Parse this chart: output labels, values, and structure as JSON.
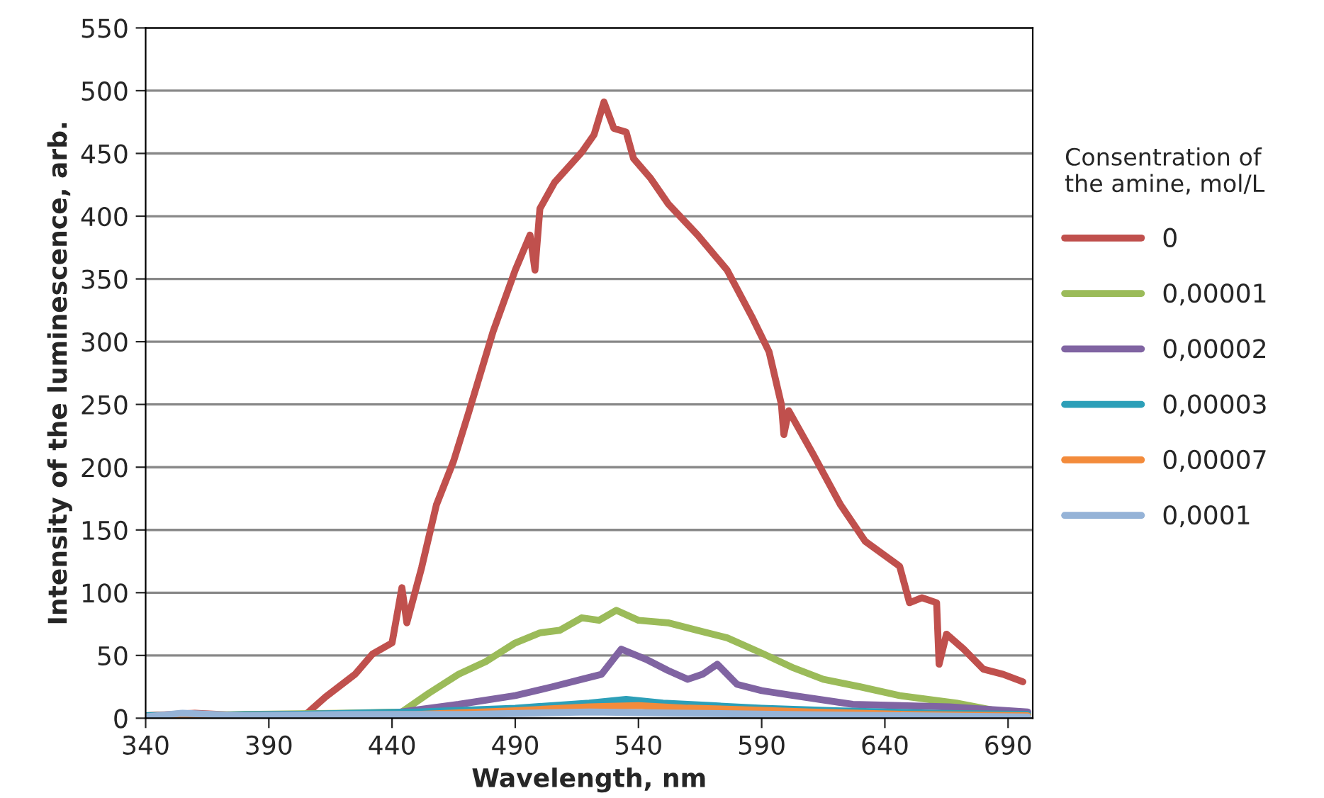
{
  "chart_data": {
    "type": "line",
    "xlabel": "Wavelength, nm",
    "ylabel": "Intensity of the luminescence, arb.",
    "legend_title": "Consentration of\nthe amine, mol/L",
    "legend": "right",
    "grid": "y",
    "marker": "none",
    "line_style": "solid",
    "xlim": [
      340,
      700
    ],
    "xticks": [
      340,
      390,
      440,
      490,
      540,
      590,
      640,
      690
    ],
    "ylim": [
      0,
      550
    ],
    "yticks": [
      0,
      50,
      100,
      150,
      200,
      250,
      300,
      350,
      400,
      450,
      500,
      550
    ],
    "series": [
      {
        "name": "0",
        "color": "#c0504d",
        "x": [
          340,
          360,
          380,
          405,
          413,
          425,
          432,
          440,
          444,
          446,
          452,
          458,
          465,
          471,
          481,
          490,
          496,
          498,
          500,
          506,
          517,
          522,
          526,
          530,
          535,
          538,
          545,
          552,
          564,
          576,
          586,
          593,
          598,
          599,
          601,
          611,
          622,
          632,
          646,
          650,
          655,
          661,
          662,
          665,
          672,
          680,
          688,
          696
        ],
        "values": [
          2,
          4,
          2,
          3,
          17,
          35,
          51,
          60,
          104,
          76,
          120,
          170,
          205,
          243,
          308,
          357,
          385,
          357,
          406,
          427,
          451,
          465,
          491,
          470,
          467,
          446,
          430,
          410,
          385,
          357,
          320,
          292,
          250,
          226,
          245,
          210,
          170,
          141,
          121,
          92,
          96,
          92,
          43,
          67,
          55,
          39,
          35,
          29
        ]
      },
      {
        "name": "0,00001",
        "color": "#9bbb59",
        "x": [
          340,
          380,
          420,
          444,
          455,
          467,
          478,
          490,
          500,
          508,
          517,
          524,
          531,
          540,
          552,
          564,
          576,
          591,
          603,
          615,
          630,
          646,
          669,
          685,
          698
        ],
        "values": [
          2,
          3,
          4,
          5,
          20,
          35,
          45,
          60,
          68,
          70,
          80,
          78,
          86,
          78,
          76,
          70,
          64,
          51,
          40,
          31,
          25,
          18,
          12,
          6,
          3
        ]
      },
      {
        "name": "0,00002",
        "color": "#8064a2",
        "x": [
          340,
          400,
          440,
          467,
          490,
          505,
          517,
          525,
          533,
          543,
          552,
          560,
          566,
          572,
          580,
          590,
          603,
          627,
          666,
          698
        ],
        "values": [
          2,
          3,
          4,
          11,
          18,
          25,
          31,
          35,
          55,
          47,
          38,
          31,
          35,
          43,
          27,
          22,
          18,
          11,
          9,
          5
        ]
      },
      {
        "name": "0,00003",
        "color": "#2c9fb8",
        "x": [
          340,
          400,
          450,
          490,
          520,
          535,
          550,
          570,
          590,
          620,
          660,
          698
        ],
        "values": [
          2,
          3,
          5,
          8,
          12,
          15,
          12,
          10,
          8,
          6,
          4,
          3
        ]
      },
      {
        "name": "0,00007",
        "color": "#f38b3b",
        "x": [
          340,
          400,
          450,
          490,
          520,
          540,
          560,
          580,
          610,
          650,
          698
        ],
        "values": [
          1,
          2,
          3,
          6,
          9,
          10,
          8,
          7,
          5,
          3,
          2
        ]
      },
      {
        "name": "0,0001",
        "color": "#95b3d7",
        "x": [
          340,
          355,
          380,
          420,
          470,
          520,
          560,
          600,
          650,
          698
        ],
        "values": [
          1,
          4,
          2,
          3,
          3,
          5,
          4,
          3,
          2,
          1
        ]
      }
    ]
  }
}
